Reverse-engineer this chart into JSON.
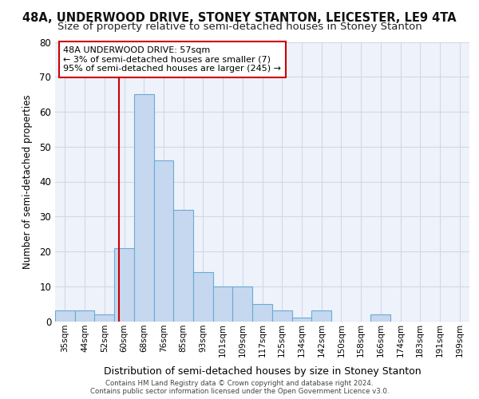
{
  "title1": "48A, UNDERWOOD DRIVE, STONEY STANTON, LEICESTER, LE9 4TA",
  "title2": "Size of property relative to semi-detached houses in Stoney Stanton",
  "xlabel": "Distribution of semi-detached houses by size in Stoney Stanton",
  "ylabel": "Number of semi-detached properties",
  "categories": [
    "35sqm",
    "44sqm",
    "52sqm",
    "60sqm",
    "68sqm",
    "76sqm",
    "85sqm",
    "93sqm",
    "101sqm",
    "109sqm",
    "117sqm",
    "125sqm",
    "134sqm",
    "142sqm",
    "150sqm",
    "158sqm",
    "166sqm",
    "174sqm",
    "183sqm",
    "191sqm",
    "199sqm"
  ],
  "values": [
    3,
    3,
    2,
    21,
    65,
    46,
    32,
    14,
    10,
    10,
    5,
    3,
    1,
    3,
    0,
    0,
    2,
    0,
    0,
    0,
    0
  ],
  "bar_color": "#c5d8f0",
  "bar_edge_color": "#6aaad4",
  "subject_label": "48A UNDERWOOD DRIVE: 57sqm",
  "annotation_smaller": "← 3% of semi-detached houses are smaller (7)",
  "annotation_larger": "95% of semi-detached houses are larger (245) →",
  "annotation_box_color": "#ffffff",
  "annotation_box_edge": "#cc0000",
  "red_line_color": "#cc0000",
  "grid_color": "#d0d8e8",
  "ylim": [
    0,
    80
  ],
  "yticks": [
    0,
    10,
    20,
    30,
    40,
    50,
    60,
    70,
    80
  ],
  "footer1": "Contains HM Land Registry data © Crown copyright and database right 2024.",
  "footer2": "Contains public sector information licensed under the Open Government Licence v3.0.",
  "bg_color": "#eef2fa",
  "title1_fontsize": 10.5,
  "title2_fontsize": 9.5,
  "subject_bar_index": 2.72
}
